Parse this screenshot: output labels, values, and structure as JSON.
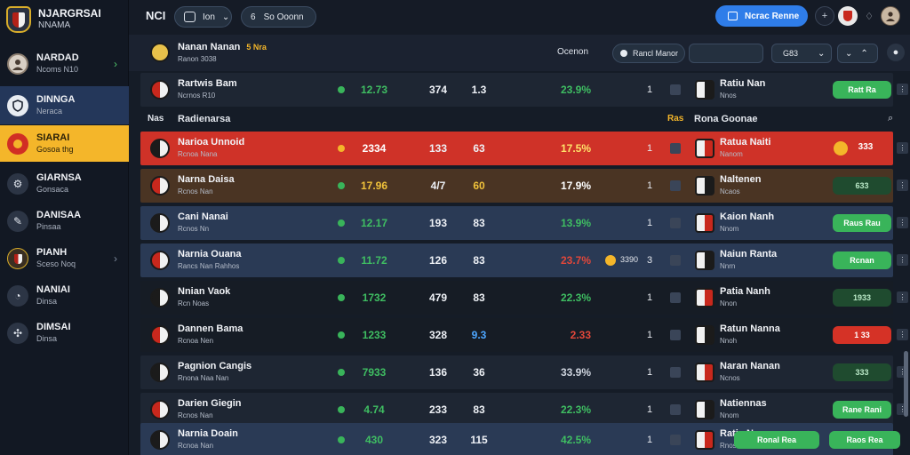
{
  "app": {
    "title": "NJARGRSAI",
    "subtitle": "NNAMA"
  },
  "sidebar": {
    "items": [
      {
        "title": "NARDAD",
        "sub": "Ncoms N10",
        "icon": "avatar-icon",
        "state": "normal",
        "has_arrow": true
      },
      {
        "title": "DINNGA",
        "sub": "Neraca",
        "icon": "shield-icon",
        "state": "blue"
      },
      {
        "title": "SIARAI",
        "sub": "Gosoa thg",
        "icon": "ball-icon",
        "state": "gold"
      },
      {
        "title": "GIARNSA",
        "sub": "Gonsaca",
        "icon": "gear-icon",
        "state": "normal"
      },
      {
        "title": "DANISAA",
        "sub": "Pinsaa",
        "icon": "compass-icon",
        "state": "normal"
      },
      {
        "title": "PIANH",
        "sub": "Sceso Noq",
        "icon": "crest-icon",
        "state": "normal",
        "has_arrow": true
      },
      {
        "title": "NANIAI",
        "sub": "Dinsa",
        "icon": "clock-icon",
        "state": "normal"
      },
      {
        "title": "DIMSAI",
        "sub": "Dinsa",
        "icon": "puzzle-icon",
        "state": "normal"
      }
    ]
  },
  "topbar": {
    "logo": "NCI",
    "filter_label": "Ion",
    "search_label": "So Ooonn",
    "primary_label": "Ncrac Renne"
  },
  "subheader": {
    "team": "Nanan Nanan",
    "team_extra": "5 Nra",
    "meta": "Ranon 3038",
    "label_right": "Ocenon",
    "filter_chip": "Rancl Manor",
    "select_value": "G83"
  },
  "colors": {
    "accent_blue": "#2f7de9",
    "highlight_red": "#cf3228",
    "highlight_gold": "#f4b62a",
    "positive_green": "#39b45a"
  },
  "section": {
    "left_label": "Nas",
    "left_title": "Radienarsa",
    "right_label": "Ras",
    "right_title": "Rona Goonae"
  },
  "rows": [
    {
      "home": "Rartwis Bam",
      "meta": "Ncrnos R10",
      "v1": "12.73",
      "v2": "374",
      "v3": "1.3",
      "pct": "23.9%",
      "rank": "1",
      "away": "Ratiu Nan",
      "away_meta": "Nnos",
      "action": "Ratt Ra",
      "style": "dark",
      "num_color": "#3fbe62",
      "pct_color": "#3fbe62"
    },
    {
      "home": "Narioa Unnoid",
      "meta": "Rcnoa Nana",
      "v1": "2334",
      "v2": "133",
      "v3": "63",
      "pct": "17.5%",
      "rank": "1",
      "away": "Ratua Naiti",
      "away_meta": "Nanom",
      "action": "333",
      "style": "red",
      "num_color": "#ffffff",
      "pct_color": "#ffe26a"
    },
    {
      "home": "Narna Daisa",
      "meta": "Rcnos Nan",
      "v1": "17.96",
      "v2": "4/7",
      "v3": "60",
      "pct": "17.9%",
      "rank": "1",
      "away": "Naltenen",
      "away_meta": "Ncaos",
      "action": "633",
      "style": "brown",
      "num_color": "#f0c23a",
      "pct_color": "#ffffff"
    },
    {
      "home": "Cani Nanai",
      "meta": "Rcnos Nn",
      "v1": "12.17",
      "v2": "193",
      "v3": "83",
      "pct": "13.9%",
      "rank": "1",
      "away": "Kaion Nanh",
      "away_meta": "Nnom",
      "action": "Raus Rau",
      "style": "blue",
      "num_color": "#3fbe62",
      "pct_color": "#3fbe62"
    },
    {
      "home": "Narnia Ouana",
      "meta": "Rancs Nan Rahhos",
      "v1": "11.72",
      "v2": "126",
      "v3": "83",
      "pct": "23.7%",
      "rank": "3",
      "away": "Naiun Ranta",
      "away_meta": "Nnrn",
      "action": "Rcnan",
      "style": "blue",
      "num_color": "#3fbe62",
      "pct_color": "#e2473a",
      "note": "3390"
    },
    {
      "home": "Nnian Vaok",
      "meta": "Rcn Noas",
      "v1": "1732",
      "v2": "479",
      "v3": "83",
      "pct": "22.3%",
      "rank": "1",
      "away": "Patia Nanh",
      "away_meta": "Nnon",
      "action": "1933",
      "style": "black",
      "num_color": "#3fbe62",
      "pct_color": "#3fbe62"
    },
    {
      "home": "Dannen Bama",
      "meta": "Rcnoa Nen",
      "v1": "1233",
      "v2": "328",
      "v3": "9.3",
      "pct": "2.33",
      "rank": "1",
      "away": "Ratun Nanna",
      "away_meta": "Nnoh",
      "action": "1 33",
      "style": "black",
      "num_color": "#3fbe62",
      "pct_color": "#e2473a"
    },
    {
      "home": "Pagnion Cangis",
      "meta": "Rnona Naa Nan",
      "v1": "7933",
      "v2": "136",
      "v3": "36",
      "pct": "33.9%",
      "rank": "1",
      "away": "Naran Nanan",
      "away_meta": "Ncnos",
      "action": "333",
      "style": "dark",
      "num_color": "#3fbe62",
      "pct_color": "#cfd5df"
    },
    {
      "home": "Darien Giegin",
      "meta": "Rcnos Nan",
      "v1": "4.74",
      "v2": "233",
      "v3": "83",
      "pct": "22.3%",
      "rank": "1",
      "away": "Natiennas",
      "away_meta": "Nnom",
      "action": "Rane Rani",
      "style": "dark",
      "num_color": "#3fbe62",
      "pct_color": "#3fbe62"
    },
    {
      "home": "Narnia Doain",
      "meta": "Rcnoa Nan",
      "v1": "430",
      "v2": "323",
      "v3": "115",
      "pct": "42.5%",
      "rank": "1",
      "away": "Ratia Nan",
      "away_meta": "Rnos",
      "action": "Ronal Rea",
      "action2": "Raos Rea",
      "style": "blue",
      "num_color": "#3fbe62",
      "pct_color": "#3fbe62"
    }
  ]
}
